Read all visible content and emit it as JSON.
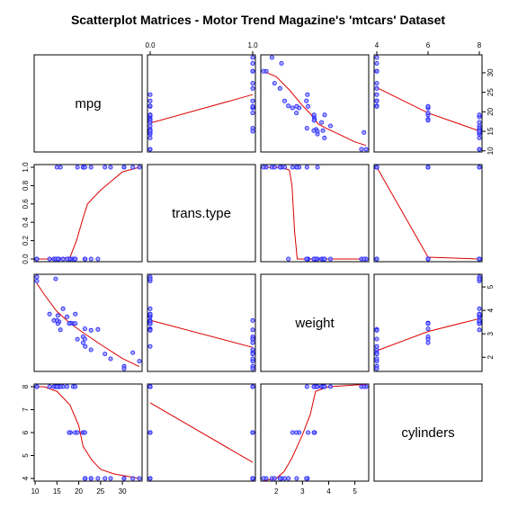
{
  "chart_data": {
    "type": "scatter",
    "title": "Scatterplot Matrices - Motor Trend Magazine's 'mtcars' Dataset",
    "variables": [
      "mpg",
      "trans.type",
      "weight",
      "cylinders"
    ],
    "axes": {
      "mpg": {
        "range": [
          10.4,
          33.9
        ],
        "ticks": [
          10,
          15,
          20,
          25,
          30
        ],
        "tick_labels": [
          "10",
          "15",
          "20",
          "25",
          "30"
        ]
      },
      "trans.type": {
        "range": [
          0,
          1
        ],
        "ticks": [
          0,
          0.2,
          0.4,
          0.6,
          0.8,
          1.0
        ],
        "tick_labels": [
          "0.0",
          "0.2",
          "0.4",
          "0.6",
          "0.8",
          "1.0"
        ]
      },
      "weight": {
        "range": [
          1.513,
          5.424
        ],
        "ticks": [
          2,
          3,
          4,
          5
        ],
        "tick_labels": [
          "2",
          "3",
          "4",
          "5"
        ]
      },
      "cylinders": {
        "range": [
          4,
          8
        ],
        "ticks": [
          4,
          5,
          6,
          7,
          8
        ],
        "tick_labels": [
          "4",
          "5",
          "6",
          "7",
          "8"
        ]
      }
    },
    "tick_placement": {
      "top": {
        "trans.type": "0.0|1.0 only",
        "cylinders": "4|6|8 only"
      },
      "right": [
        "mpg",
        "weight"
      ],
      "left": [
        "trans.type",
        "cylinders"
      ],
      "bottom": [
        "mpg",
        "weight"
      ]
    },
    "top_tick_labels": {
      "trans.type": [
        "0.0",
        "1.0"
      ],
      "cylinders": [
        "4",
        "6",
        "8"
      ]
    },
    "observations": {
      "mpg": [
        21.0,
        21.0,
        22.8,
        21.4,
        18.7,
        18.1,
        14.3,
        24.4,
        22.8,
        19.2,
        17.8,
        16.4,
        17.3,
        15.2,
        10.4,
        10.4,
        14.7,
        32.4,
        30.4,
        33.9,
        21.5,
        15.5,
        15.2,
        13.3,
        19.2,
        27.3,
        26.0,
        30.4,
        15.8,
        19.7,
        15.0,
        21.4
      ],
      "trans.type": [
        1,
        1,
        1,
        0,
        0,
        0,
        0,
        0,
        0,
        0,
        0,
        0,
        0,
        0,
        0,
        0,
        0,
        1,
        1,
        1,
        0,
        0,
        0,
        0,
        0,
        1,
        1,
        1,
        1,
        1,
        1,
        1
      ],
      "weight": [
        2.62,
        2.875,
        2.32,
        3.215,
        3.44,
        3.46,
        3.57,
        3.19,
        3.15,
        3.44,
        3.44,
        4.07,
        3.73,
        3.78,
        5.25,
        5.424,
        5.345,
        2.2,
        1.615,
        1.835,
        2.465,
        3.52,
        3.435,
        3.84,
        3.845,
        1.935,
        2.14,
        1.513,
        3.17,
        2.77,
        3.57,
        2.78
      ],
      "cylinders": [
        6,
        6,
        4,
        6,
        8,
        6,
        8,
        4,
        4,
        6,
        6,
        8,
        8,
        8,
        8,
        8,
        8,
        4,
        4,
        4,
        4,
        8,
        8,
        8,
        8,
        4,
        4,
        4,
        8,
        6,
        8,
        4
      ]
    },
    "smoothers": {
      "mpg~trans.type": {
        "x": [
          0,
          1
        ],
        "y": [
          17.1,
          24.4
        ]
      },
      "mpg~weight": {
        "x": [
          1.513,
          2.0,
          2.5,
          3.0,
          3.3,
          3.6,
          3.9,
          4.5,
          5.0,
          5.424
        ],
        "y": [
          30.4,
          29.0,
          25.6,
          21.6,
          19.5,
          16.9,
          15.8,
          13.9,
          12.3,
          11.4
        ]
      },
      "mpg~cylinders": {
        "x": [
          4,
          6,
          8
        ],
        "y": [
          26.2,
          19.7,
          15.1
        ]
      },
      "trans.type~mpg": {
        "x": [
          10.4,
          15.0,
          18.0,
          19.5,
          21.0,
          22.0,
          25.0,
          28.0,
          30.0,
          33.9
        ],
        "y": [
          0.0,
          0.0,
          0.02,
          0.2,
          0.45,
          0.6,
          0.75,
          0.87,
          0.95,
          1.0
        ]
      },
      "trans.type~weight": {
        "x": [
          1.513,
          2.2,
          2.5,
          2.6,
          2.7,
          2.8,
          3.3,
          4.0,
          5.424
        ],
        "y": [
          1.0,
          1.0,
          0.97,
          0.8,
          0.3,
          0.0,
          0.0,
          0.0,
          0.0
        ]
      },
      "trans.type~cylinders": {
        "x": [
          4,
          6,
          8
        ],
        "y": [
          1.0,
          0.02,
          0.0
        ]
      },
      "weight~mpg": {
        "x": [
          10.4,
          12.0,
          15.0,
          18.0,
          21.0,
          25.0,
          30.0,
          33.9
        ],
        "y": [
          5.15,
          4.7,
          3.95,
          3.45,
          3.05,
          2.55,
          1.95,
          1.6
        ]
      },
      "weight~trans.type": {
        "x": [
          0,
          1
        ],
        "y": [
          3.58,
          2.42
        ]
      },
      "weight~cylinders": {
        "x": [
          4,
          6,
          8
        ],
        "y": [
          2.28,
          3.1,
          3.65
        ]
      },
      "cylinders~mpg": {
        "x": [
          10.4,
          12.0,
          15.0,
          18.0,
          20.0,
          21.0,
          23.0,
          25.0,
          28.0,
          33.9
        ],
        "y": [
          8.0,
          8.0,
          7.8,
          7.2,
          6.3,
          5.4,
          4.8,
          4.4,
          4.2,
          4.0
        ]
      },
      "cylinders~trans.type": {
        "x": [
          0,
          1
        ],
        "y": [
          7.3,
          4.7
        ]
      },
      "cylinders~weight": {
        "x": [
          1.513,
          2.0,
          2.3,
          2.6,
          3.0,
          3.3,
          3.5,
          4.0,
          5.424
        ],
        "y": [
          3.9,
          4.0,
          4.3,
          4.9,
          5.9,
          6.8,
          7.8,
          8.0,
          8.1
        ]
      }
    },
    "point_color": "#1a1aff",
    "point_fill": "#8a8aff",
    "smoother_color": "#dd0000",
    "grid": false,
    "legend": "none"
  }
}
